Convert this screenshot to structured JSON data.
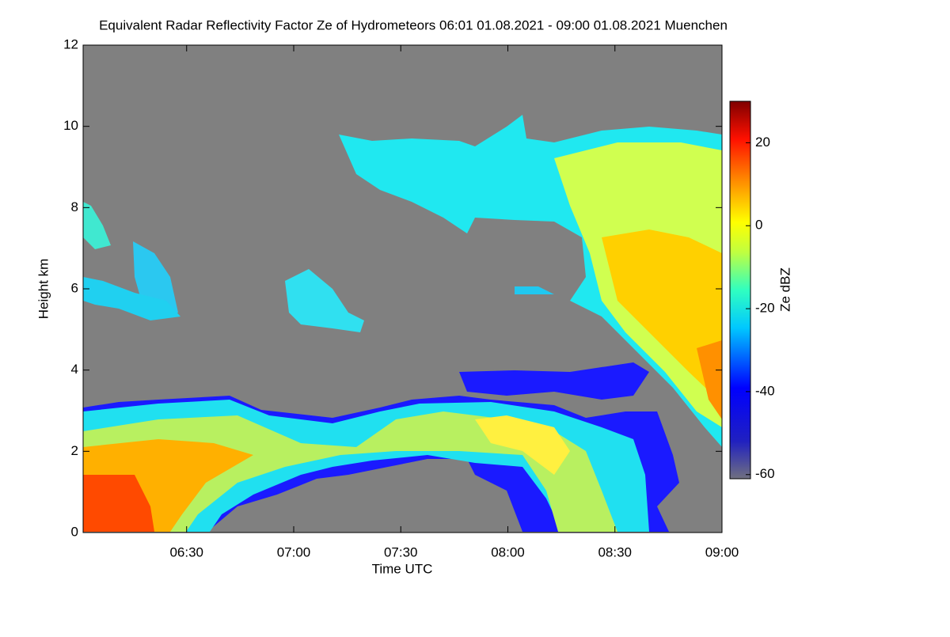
{
  "chart_data": {
    "type": "heatmap",
    "title": "Equivalent Radar Reflectivity Factor Ze of Hydrometeors   06:01 01.08.2021 - 09:00 01.08.2021 Muenchen",
    "x_label": "Time UTC",
    "y_label": "Height km",
    "colorbar_label": "Ze dBZ",
    "xlim": [
      361,
      540
    ],
    "xticks": [
      {
        "value": 390,
        "label": "06:30"
      },
      {
        "value": 420,
        "label": "07:00"
      },
      {
        "value": 450,
        "label": "07:30"
      },
      {
        "value": 480,
        "label": "08:00"
      },
      {
        "value": 510,
        "label": "08:30"
      },
      {
        "value": 540,
        "label": "09:00"
      }
    ],
    "ylim": [
      0,
      12
    ],
    "yticks": [
      0,
      2,
      4,
      6,
      8,
      10,
      12
    ],
    "clim": [
      -61,
      30
    ],
    "cticks": [
      -60,
      -40,
      -20,
      0,
      20
    ],
    "background_color": "#808080"
  }
}
